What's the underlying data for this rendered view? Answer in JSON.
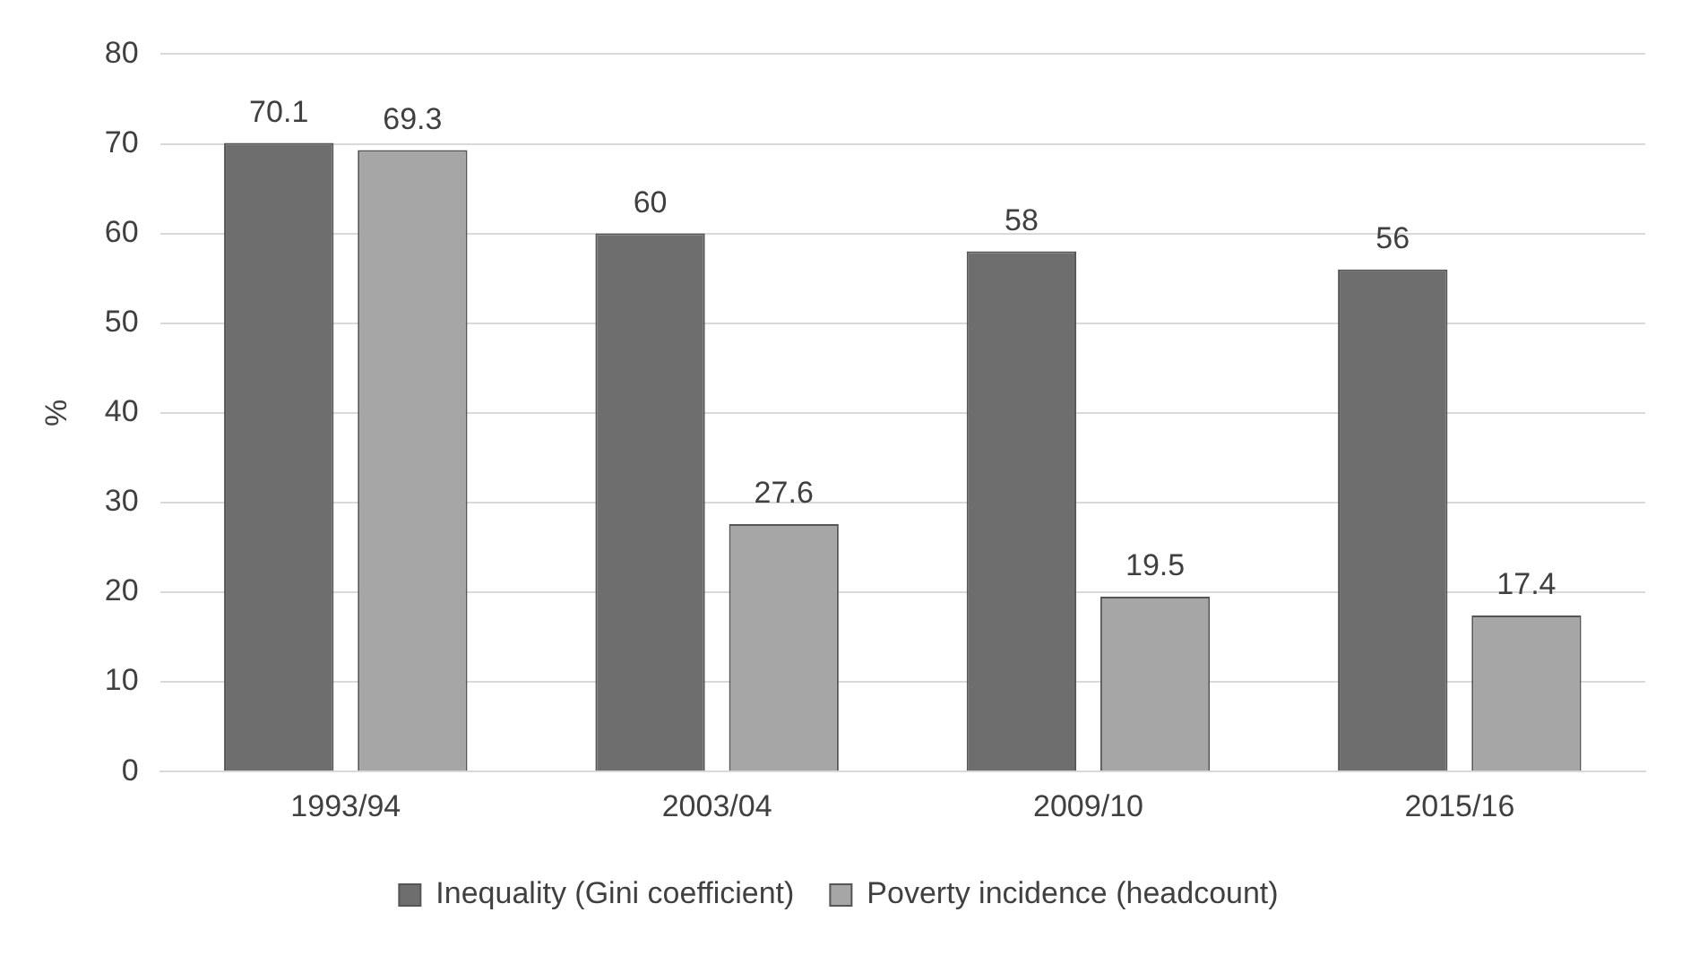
{
  "chart_data": {
    "type": "bar",
    "ylabel": "%",
    "categories": [
      "1993/94",
      "2003/04",
      "2009/10",
      "2015/16"
    ],
    "series": [
      {
        "name": "Inequality (Gini coefficient)",
        "color": "#6e6e6e",
        "values": [
          70.1,
          60,
          58,
          56
        ]
      },
      {
        "name": "Poverty incidence (headcount)",
        "color": "#a6a6a6",
        "values": [
          69.3,
          27.6,
          19.5,
          17.4
        ]
      }
    ],
    "ylim": [
      0,
      80
    ],
    "yticks": [
      0,
      10,
      20,
      30,
      40,
      50,
      60,
      70,
      80
    ],
    "grid": "y",
    "legend": "bottom",
    "data_labels": true
  }
}
